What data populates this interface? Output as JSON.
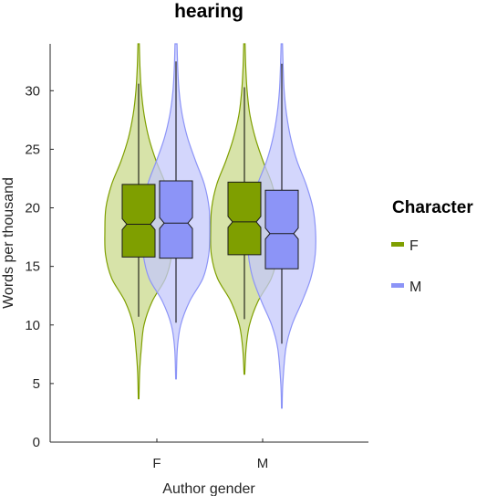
{
  "chart_data": {
    "type": "violin",
    "title": "hearing",
    "xlabel": "Author gender",
    "ylabel": "Words per thousand",
    "ylim": [
      0,
      34
    ],
    "yticks": [
      0,
      5,
      10,
      15,
      20,
      25,
      30
    ],
    "categories": [
      "F",
      "M"
    ],
    "grid": false,
    "legend": {
      "title": "Character",
      "position": "right",
      "entries": [
        {
          "label": "F",
          "color": "#7f9f00"
        },
        {
          "label": "M",
          "color": "#8c94f7"
        }
      ]
    },
    "series": [
      {
        "name": "F",
        "color": "#7f9f00",
        "fill": "#c9d98c",
        "groups": [
          {
            "category": "F",
            "min": 3.7,
            "max": 34,
            "whisker_low": 10.7,
            "whisker_high": 30.6,
            "q1": 15.8,
            "median": 18.6,
            "q3": 22.0,
            "density": [
              [
                3.7,
                0.01
              ],
              [
                6,
                0.03
              ],
              [
                8,
                0.08
              ],
              [
                10,
                0.16
              ],
              [
                12,
                0.4
              ],
              [
                14,
                0.8
              ],
              [
                16,
                0.98
              ],
              [
                18,
                1.0
              ],
              [
                20,
                0.97
              ],
              [
                22,
                0.8
              ],
              [
                24,
                0.52
              ],
              [
                26,
                0.3
              ],
              [
                28,
                0.16
              ],
              [
                30,
                0.08
              ],
              [
                32,
                0.04
              ],
              [
                34,
                0.02
              ]
            ]
          },
          {
            "category": "M",
            "min": 5.8,
            "max": 34,
            "whisker_low": 10.5,
            "whisker_high": 30.3,
            "q1": 16.0,
            "median": 18.8,
            "q3": 22.2,
            "density": [
              [
                5.8,
                0.01
              ],
              [
                8,
                0.05
              ],
              [
                10,
                0.15
              ],
              [
                12,
                0.4
              ],
              [
                14,
                0.8
              ],
              [
                16,
                0.98
              ],
              [
                18,
                1.0
              ],
              [
                20,
                0.97
              ],
              [
                22,
                0.82
              ],
              [
                24,
                0.55
              ],
              [
                26,
                0.32
              ],
              [
                28,
                0.16
              ],
              [
                30,
                0.08
              ],
              [
                32,
                0.04
              ],
              [
                34,
                0.02
              ]
            ]
          }
        ]
      },
      {
        "name": "M",
        "color": "#8c94f7",
        "fill": "#c4c8fb",
        "groups": [
          {
            "category": "F",
            "min": 5.4,
            "max": 34,
            "whisker_low": 10.2,
            "whisker_high": 32.5,
            "q1": 15.7,
            "median": 18.7,
            "q3": 22.3,
            "density": [
              [
                5.4,
                0.01
              ],
              [
                8,
                0.04
              ],
              [
                10,
                0.14
              ],
              [
                12,
                0.4
              ],
              [
                14,
                0.8
              ],
              [
                16,
                0.97
              ],
              [
                18,
                1.0
              ],
              [
                20,
                0.98
              ],
              [
                22,
                0.84
              ],
              [
                24,
                0.58
              ],
              [
                26,
                0.34
              ],
              [
                28,
                0.18
              ],
              [
                30,
                0.09
              ],
              [
                32,
                0.05
              ],
              [
                34,
                0.03
              ]
            ]
          },
          {
            "category": "M",
            "min": 2.9,
            "max": 34,
            "whisker_low": 8.4,
            "whisker_high": 32.3,
            "q1": 14.8,
            "median": 17.8,
            "q3": 21.5,
            "density": [
              [
                2.9,
                0.01
              ],
              [
                5,
                0.03
              ],
              [
                8,
                0.12
              ],
              [
                10,
                0.3
              ],
              [
                12,
                0.6
              ],
              [
                14,
                0.86
              ],
              [
                16,
                0.99
              ],
              [
                18,
                1.0
              ],
              [
                20,
                0.92
              ],
              [
                22,
                0.72
              ],
              [
                24,
                0.45
              ],
              [
                26,
                0.26
              ],
              [
                28,
                0.14
              ],
              [
                30,
                0.07
              ],
              [
                32,
                0.04
              ],
              [
                34,
                0.02
              ]
            ]
          }
        ]
      }
    ]
  }
}
